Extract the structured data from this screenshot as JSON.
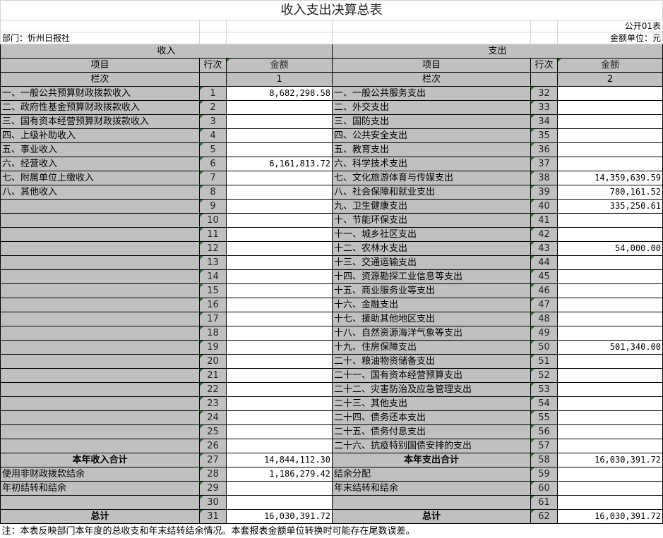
{
  "title": "收入支出决算总表",
  "form_code": "公开01表",
  "department": "部门：忻州日报社",
  "unit": "金额单位：元",
  "headers": {
    "income": "收入",
    "expense": "支出",
    "item": "项目",
    "line": "行次",
    "amount": "金额",
    "column_no": "栏次",
    "income_col": "1",
    "expense_col": "2"
  },
  "rows": [
    {
      "li": "一、一般公共预算财政拨款收入",
      "ln": "1",
      "la": "8,682,298.58",
      "ri": "一、一般公共服务支出",
      "rn": "32",
      "ra": ""
    },
    {
      "li": "二、政府性基金预算财政拨款收入",
      "ln": "2",
      "la": "",
      "ri": "二、外交支出",
      "rn": "33",
      "ra": ""
    },
    {
      "li": "三、国有资本经营预算财政拨款收入",
      "ln": "3",
      "la": "",
      "ri": "三、国防支出",
      "rn": "34",
      "ra": ""
    },
    {
      "li": "四、上级补助收入",
      "ln": "4",
      "la": "",
      "ri": "四、公共安全支出",
      "rn": "35",
      "ra": ""
    },
    {
      "li": "五、事业收入",
      "ln": "5",
      "la": "",
      "ri": "五、教育支出",
      "rn": "36",
      "ra": ""
    },
    {
      "li": "六、经营收入",
      "ln": "6",
      "la": "6,161,813.72",
      "ri": "六、科学技术支出",
      "rn": "37",
      "ra": ""
    },
    {
      "li": "七、附属单位上缴收入",
      "ln": "7",
      "la": "",
      "ri": "七、文化旅游体育与传媒支出",
      "rn": "38",
      "ra": "14,359,639.59"
    },
    {
      "li": "八、其他收入",
      "ln": "8",
      "la": "",
      "ri": "八、社会保障和就业支出",
      "rn": "39",
      "ra": "780,161.52"
    },
    {
      "li": "",
      "ln": "9",
      "la": "",
      "ri": "九、卫生健康支出",
      "rn": "40",
      "ra": "335,250.61"
    },
    {
      "li": "",
      "ln": "10",
      "la": "",
      "ri": "十、节能环保支出",
      "rn": "41",
      "ra": ""
    },
    {
      "li": "",
      "ln": "11",
      "la": "",
      "ri": "十一、城乡社区支出",
      "rn": "42",
      "ra": ""
    },
    {
      "li": "",
      "ln": "12",
      "la": "",
      "ri": "十二、农林水支出",
      "rn": "43",
      "ra": "54,000.00"
    },
    {
      "li": "",
      "ln": "13",
      "la": "",
      "ri": "十三、交通运输支出",
      "rn": "44",
      "ra": ""
    },
    {
      "li": "",
      "ln": "14",
      "la": "",
      "ri": "十四、资源勘探工业信息等支出",
      "rn": "45",
      "ra": ""
    },
    {
      "li": "",
      "ln": "15",
      "la": "",
      "ri": "十五、商业服务业等支出",
      "rn": "46",
      "ra": ""
    },
    {
      "li": "",
      "ln": "16",
      "la": "",
      "ri": "十六、金融支出",
      "rn": "47",
      "ra": ""
    },
    {
      "li": "",
      "ln": "17",
      "la": "",
      "ri": "十七、援助其他地区支出",
      "rn": "48",
      "ra": ""
    },
    {
      "li": "",
      "ln": "18",
      "la": "",
      "ri": "十八、自然资源海洋气象等支出",
      "rn": "49",
      "ra": ""
    },
    {
      "li": "",
      "ln": "19",
      "la": "",
      "ri": "十九、住房保障支出",
      "rn": "50",
      "ra": "501,340.00"
    },
    {
      "li": "",
      "ln": "20",
      "la": "",
      "ri": "二十、粮油物资储备支出",
      "rn": "51",
      "ra": ""
    },
    {
      "li": "",
      "ln": "21",
      "la": "",
      "ri": "二十一、国有资本经营预算支出",
      "rn": "52",
      "ra": ""
    },
    {
      "li": "",
      "ln": "22",
      "la": "",
      "ri": "二十二、灾害防治及应急管理支出",
      "rn": "53",
      "ra": ""
    },
    {
      "li": "",
      "ln": "23",
      "la": "",
      "ri": "二十三、其他支出",
      "rn": "54",
      "ra": ""
    },
    {
      "li": "",
      "ln": "24",
      "la": "",
      "ri": "二十四、债务还本支出",
      "rn": "55",
      "ra": ""
    },
    {
      "li": "",
      "ln": "25",
      "la": "",
      "ri": "二十五、债务付息支出",
      "rn": "56",
      "ra": ""
    },
    {
      "li": "",
      "ln": "26",
      "la": "",
      "ri": "二十六、抗疫特别国债安排的支出",
      "rn": "57",
      "ra": ""
    },
    {
      "li": "本年收入合计",
      "ln": "27",
      "la": "14,844,112.30",
      "ri": "本年支出合计",
      "rn": "58",
      "ra": "16,030,391.72",
      "bold": true
    },
    {
      "li": "使用非财政拨款结余",
      "ln": "28",
      "la": "1,186,279.42",
      "ri": "结余分配",
      "rn": "59",
      "ra": ""
    },
    {
      "li": "年初结转和结余",
      "ln": "29",
      "la": "",
      "ri": "年末结转和结余",
      "rn": "60",
      "ra": ""
    },
    {
      "li": "",
      "ln": "30",
      "la": "",
      "ri": "",
      "rn": "61",
      "ra": ""
    },
    {
      "li": "总计",
      "ln": "31",
      "la": "16,030,391.72",
      "ri": "总计",
      "rn": "62",
      "ra": "16,030,391.72",
      "bold": true
    }
  ],
  "footnote": "注：本表反映部门本年度的总收支和年末结转结余情况。本套报表金额单位转换时可能存在尾数误差。"
}
